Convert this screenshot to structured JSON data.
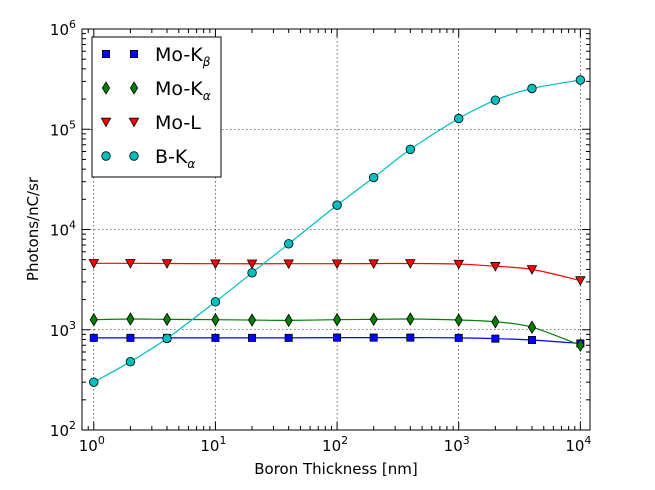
{
  "chart_data": {
    "type": "line",
    "xlabel": "Boron Thickness [nm]",
    "ylabel": "Photons/nC/sr",
    "xscale": "log",
    "yscale": "log",
    "xlim": [
      0.8,
      12000
    ],
    "ylim": [
      100,
      1000000
    ],
    "grid": true,
    "legend_position": "top-left",
    "x_tick_labels": [
      {
        "base": "10",
        "exp": "0",
        "value": 1
      },
      {
        "base": "10",
        "exp": "1",
        "value": 10
      },
      {
        "base": "10",
        "exp": "2",
        "value": 100
      },
      {
        "base": "10",
        "exp": "3",
        "value": 1000
      },
      {
        "base": "10",
        "exp": "4",
        "value": 10000
      }
    ],
    "y_tick_labels": [
      {
        "base": "10",
        "exp": "2",
        "value": 100
      },
      {
        "base": "10",
        "exp": "3",
        "value": 1000
      },
      {
        "base": "10",
        "exp": "4",
        "value": 10000
      },
      {
        "base": "10",
        "exp": "5",
        "value": 100000
      },
      {
        "base": "10",
        "exp": "6",
        "value": 1000000
      }
    ],
    "x": [
      1,
      2,
      4,
      10,
      20,
      40,
      100,
      200,
      400,
      1000,
      2000,
      4000,
      10000
    ],
    "series": [
      {
        "name": "Mo-Kβ",
        "legend_base": "Mo-K",
        "legend_sub": "β",
        "marker": "square",
        "color": "#0000ff",
        "line_color": "#0000ff",
        "values": [
          830,
          830,
          830,
          830,
          830,
          830,
          835,
          835,
          835,
          830,
          815,
          790,
          730
        ]
      },
      {
        "name": "Mo-Kα",
        "legend_base": "Mo-K",
        "legend_sub": "α",
        "marker": "diamond",
        "color": "#008000",
        "line_color": "#008000",
        "values": [
          1260,
          1280,
          1270,
          1260,
          1250,
          1240,
          1260,
          1270,
          1280,
          1250,
          1200,
          1060,
          700
        ]
      },
      {
        "name": "Mo-L",
        "legend_base": "Mo-L",
        "legend_sub": "",
        "marker": "triangle-down",
        "color": "#ff0000",
        "line_color": "#ff0000",
        "values": [
          4600,
          4600,
          4580,
          4560,
          4550,
          4560,
          4560,
          4570,
          4580,
          4520,
          4300,
          4000,
          3100
        ]
      },
      {
        "name": "B-Kα",
        "legend_base": "B-K",
        "legend_sub": "α",
        "marker": "circle",
        "color": "#00bfbf",
        "line_color": "#00bfbf",
        "values": [
          300,
          480,
          820,
          1900,
          3700,
          7200,
          17500,
          33000,
          63000,
          128000,
          195000,
          255000,
          310000
        ]
      }
    ]
  }
}
